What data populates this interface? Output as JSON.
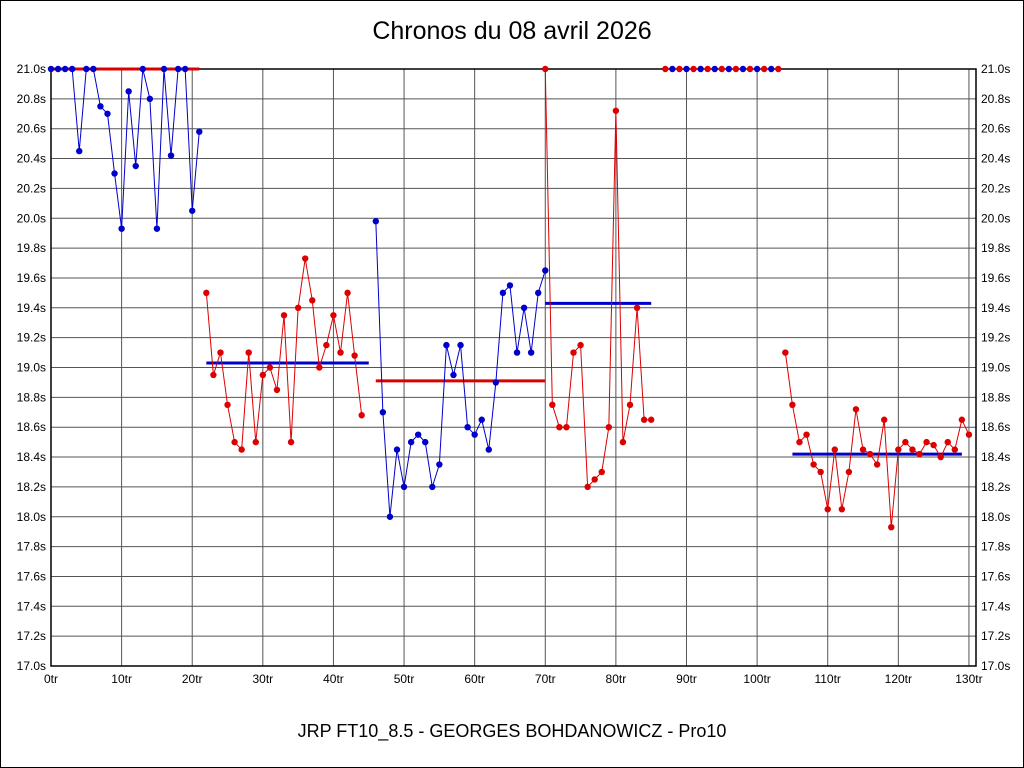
{
  "page": {
    "title": "Chronos du 08 avril 2026",
    "caption": "JRP FT10_8.5 - GEORGES BOHDANOWICZ - Pro10"
  },
  "chart_data": {
    "type": "line",
    "title": "Chronos du 08 avril 2026",
    "x_unit": "tr",
    "y_unit": "s",
    "xlim": [
      0,
      131
    ],
    "ylim": [
      17.0,
      21.0
    ],
    "x_ticks": [
      0,
      10,
      20,
      30,
      40,
      50,
      60,
      70,
      80,
      90,
      100,
      110,
      120,
      130
    ],
    "y_ticks": [
      17.0,
      17.2,
      17.4,
      17.6,
      17.8,
      18.0,
      18.2,
      18.4,
      18.6,
      18.8,
      19.0,
      19.2,
      19.4,
      19.6,
      19.8,
      20.0,
      20.2,
      20.4,
      20.6,
      20.8,
      21.0
    ],
    "grid": true,
    "legend": "none",
    "colors": {
      "red": "#dd0000",
      "blue": "#0000cc",
      "grid": "#555555",
      "frame": "#000000"
    },
    "mean_lines": [
      {
        "color": "red",
        "y": 21.0,
        "x1": 0,
        "x2": 21
      },
      {
        "color": "blue",
        "y": 19.03,
        "x1": 22,
        "x2": 45
      },
      {
        "color": "red",
        "y": 18.91,
        "x1": 46,
        "x2": 70
      },
      {
        "color": "blue",
        "y": 19.43,
        "x1": 70,
        "x2": 85
      },
      {
        "color": "blue",
        "y": 18.42,
        "x1": 105,
        "x2": 129
      }
    ],
    "series": [
      {
        "name": "segment-1-blue",
        "color": "blue",
        "draw_line": true,
        "points": [
          [
            0,
            21.0
          ],
          [
            1,
            21.0
          ],
          [
            2,
            21.0
          ],
          [
            3,
            21.0
          ],
          [
            4,
            20.45
          ],
          [
            5,
            21.0
          ],
          [
            6,
            21.0
          ],
          [
            7,
            20.75
          ],
          [
            8,
            20.7
          ],
          [
            9,
            20.3
          ],
          [
            10,
            19.93
          ],
          [
            11,
            20.85
          ],
          [
            12,
            20.35
          ],
          [
            13,
            21.0
          ],
          [
            14,
            20.8
          ],
          [
            15,
            19.93
          ],
          [
            16,
            21.0
          ],
          [
            17,
            20.42
          ],
          [
            18,
            21.0
          ],
          [
            19,
            21.0
          ],
          [
            20,
            20.05
          ],
          [
            21,
            20.58
          ]
        ]
      },
      {
        "name": "segment-2-red",
        "color": "red",
        "draw_line": true,
        "points": [
          [
            22,
            19.5
          ],
          [
            23,
            18.95
          ],
          [
            24,
            19.1
          ],
          [
            25,
            18.75
          ],
          [
            26,
            18.5
          ],
          [
            27,
            18.45
          ],
          [
            28,
            19.1
          ],
          [
            29,
            18.5
          ],
          [
            30,
            18.95
          ],
          [
            31,
            19.0
          ],
          [
            32,
            18.85
          ],
          [
            33,
            19.35
          ],
          [
            34,
            18.5
          ],
          [
            35,
            19.4
          ],
          [
            36,
            19.73
          ],
          [
            37,
            19.45
          ],
          [
            38,
            19.0
          ],
          [
            39,
            19.15
          ],
          [
            40,
            19.35
          ],
          [
            41,
            19.1
          ],
          [
            42,
            19.5
          ],
          [
            43,
            19.08
          ],
          [
            44,
            18.68
          ]
        ]
      },
      {
        "name": "segment-3-blue",
        "color": "blue",
        "draw_line": true,
        "points": [
          [
            46,
            19.98
          ],
          [
            47,
            18.7
          ],
          [
            48,
            18.0
          ],
          [
            49,
            18.45
          ],
          [
            50,
            18.2
          ],
          [
            51,
            18.5
          ],
          [
            52,
            18.55
          ],
          [
            53,
            18.5
          ],
          [
            54,
            18.2
          ],
          [
            55,
            18.35
          ],
          [
            56,
            19.15
          ],
          [
            57,
            18.95
          ],
          [
            58,
            19.15
          ],
          [
            59,
            18.6
          ],
          [
            60,
            18.55
          ],
          [
            61,
            18.65
          ],
          [
            62,
            18.45
          ],
          [
            63,
            18.9
          ],
          [
            64,
            19.5
          ],
          [
            65,
            19.55
          ],
          [
            66,
            19.1
          ],
          [
            67,
            19.4
          ],
          [
            68,
            19.1
          ],
          [
            69,
            19.5
          ],
          [
            70,
            19.65
          ]
        ]
      },
      {
        "name": "segment-4-red",
        "color": "red",
        "draw_line": true,
        "points": [
          [
            70,
            21.0
          ],
          [
            71,
            18.75
          ],
          [
            72,
            18.6
          ],
          [
            73,
            18.6
          ],
          [
            74,
            19.1
          ],
          [
            75,
            19.15
          ],
          [
            76,
            18.2
          ],
          [
            77,
            18.25
          ],
          [
            78,
            18.3
          ],
          [
            79,
            18.6
          ],
          [
            80,
            20.72
          ],
          [
            81,
            18.5
          ],
          [
            82,
            18.75
          ],
          [
            83,
            19.4
          ],
          [
            84,
            18.65
          ],
          [
            85,
            18.65
          ]
        ]
      },
      {
        "name": "plateau-red",
        "color": "red",
        "draw_line": true,
        "points": [
          [
            87,
            21.0
          ],
          [
            89,
            21.0
          ],
          [
            91,
            21.0
          ],
          [
            93,
            21.0
          ],
          [
            95,
            21.0
          ],
          [
            97,
            21.0
          ],
          [
            99,
            21.0
          ],
          [
            101,
            21.0
          ],
          [
            103,
            21.0
          ]
        ]
      },
      {
        "name": "plateau-blue",
        "color": "blue",
        "draw_line": false,
        "points": [
          [
            88,
            21.0
          ],
          [
            90,
            21.0
          ],
          [
            92,
            21.0
          ],
          [
            94,
            21.0
          ],
          [
            96,
            21.0
          ],
          [
            98,
            21.0
          ],
          [
            100,
            21.0
          ],
          [
            102,
            21.0
          ]
        ]
      },
      {
        "name": "segment-6-red",
        "color": "red",
        "draw_line": true,
        "points": [
          [
            104,
            19.1
          ],
          [
            105,
            18.75
          ],
          [
            106,
            18.5
          ],
          [
            107,
            18.55
          ],
          [
            108,
            18.35
          ],
          [
            109,
            18.3
          ],
          [
            110,
            18.05
          ],
          [
            111,
            18.45
          ],
          [
            112,
            18.05
          ],
          [
            113,
            18.3
          ],
          [
            114,
            18.72
          ],
          [
            115,
            18.45
          ],
          [
            116,
            18.42
          ],
          [
            117,
            18.35
          ],
          [
            118,
            18.65
          ],
          [
            119,
            17.93
          ],
          [
            120,
            18.45
          ],
          [
            121,
            18.5
          ],
          [
            122,
            18.45
          ],
          [
            123,
            18.42
          ],
          [
            124,
            18.5
          ],
          [
            125,
            18.48
          ],
          [
            126,
            18.4
          ],
          [
            127,
            18.5
          ],
          [
            128,
            18.45
          ],
          [
            129,
            18.65
          ],
          [
            130,
            18.55
          ]
        ]
      }
    ]
  }
}
